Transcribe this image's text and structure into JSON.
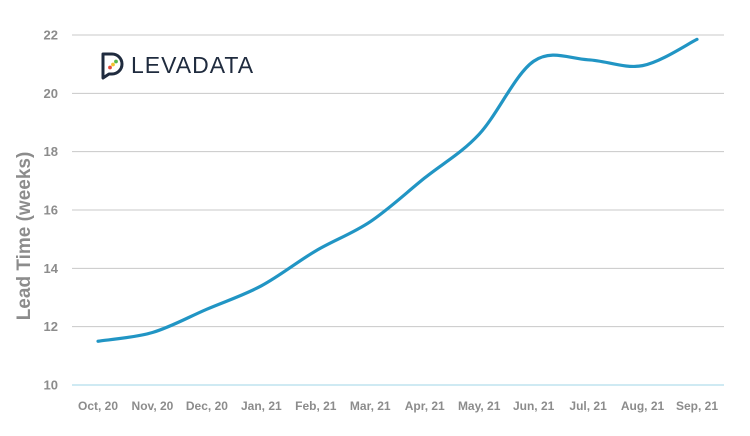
{
  "brand": {
    "name": "LEVADATA",
    "text_color": "#1f2b3e",
    "icon_dot_colors": [
      "#e64a3b",
      "#f2c12e",
      "#59b84a"
    ]
  },
  "chart_data": {
    "type": "line",
    "title": "",
    "xlabel": "",
    "ylabel": "Lead Time (weeks)",
    "categories": [
      "Oct, 20",
      "Nov, 20",
      "Dec, 20",
      "Jan, 21",
      "Feb, 21",
      "Mar, 21",
      "Apr, 21",
      "May, 21",
      "Jun, 21",
      "Jul, 21",
      "Aug, 21",
      "Sep, 21"
    ],
    "yticks": [
      10,
      12,
      14,
      16,
      18,
      20,
      22
    ],
    "ylim": [
      10,
      22
    ],
    "grid": true,
    "legend": "none",
    "series": [
      {
        "color": "#2195c4",
        "values": [
          11.5,
          11.8,
          12.6,
          13.4,
          14.6,
          15.6,
          17.1,
          18.6,
          21.1,
          21.15,
          20.95,
          21.85
        ]
      }
    ]
  }
}
